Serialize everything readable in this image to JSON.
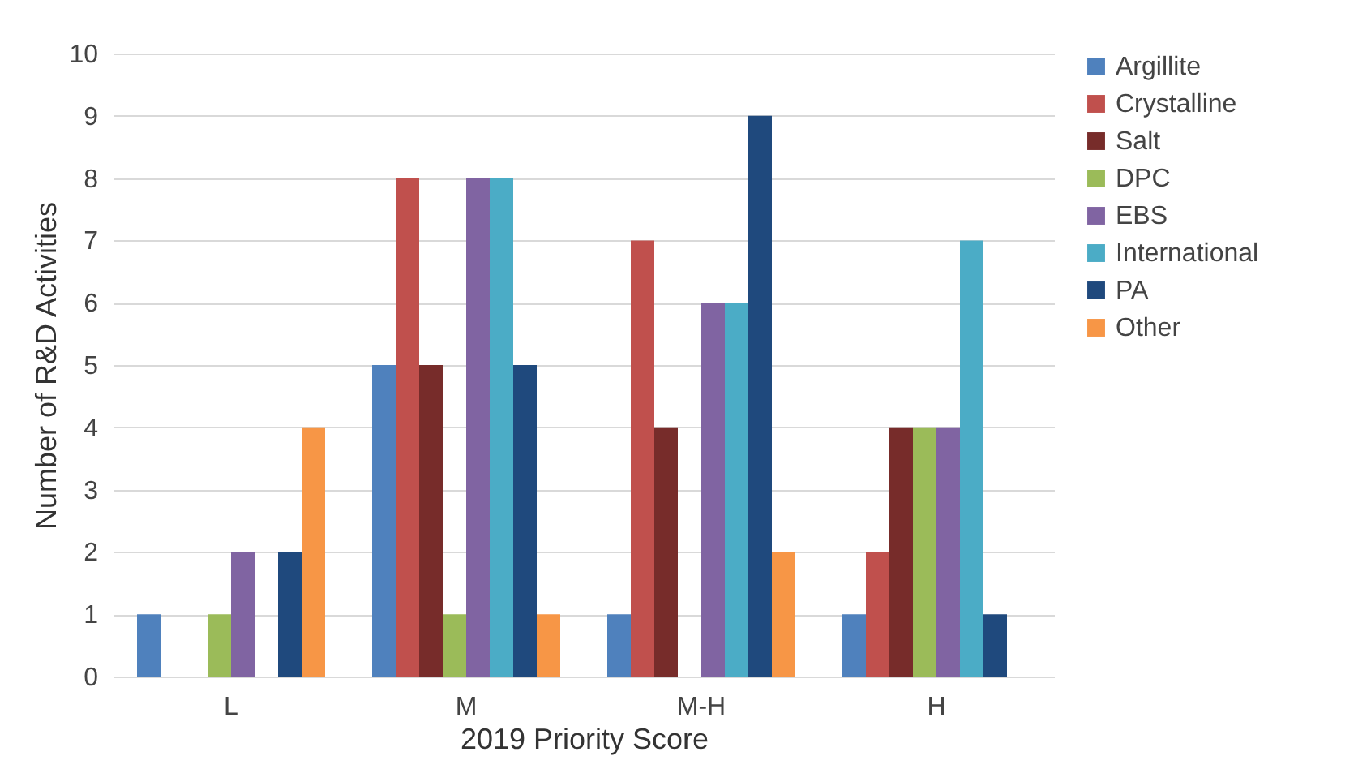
{
  "chart_data": {
    "type": "bar",
    "xlabel": "2019 Priority Score",
    "ylabel": "Number of R&D Activities",
    "categories": [
      "L",
      "M",
      "M-H",
      "H"
    ],
    "series": [
      {
        "name": "Argillite",
        "color": "#4f81bd",
        "values": [
          1,
          5,
          1,
          1
        ]
      },
      {
        "name": "Crystalline",
        "color": "#c0504d",
        "values": [
          0,
          8,
          7,
          2
        ]
      },
      {
        "name": "Salt",
        "color": "#772c2a",
        "values": [
          0,
          5,
          4,
          4
        ]
      },
      {
        "name": "DPC",
        "color": "#9bbb59",
        "values": [
          1,
          1,
          0,
          4
        ]
      },
      {
        "name": "EBS",
        "color": "#8064a2",
        "values": [
          2,
          8,
          6,
          4
        ]
      },
      {
        "name": "International",
        "color": "#4bacc6",
        "values": [
          0,
          8,
          6,
          7
        ]
      },
      {
        "name": "PA",
        "color": "#1f497d",
        "values": [
          2,
          5,
          9,
          1
        ]
      },
      {
        "name": "Other",
        "color": "#f79646",
        "values": [
          4,
          1,
          2,
          0
        ]
      }
    ],
    "ylim": [
      0,
      10
    ],
    "yticks": [
      0,
      1,
      2,
      3,
      4,
      5,
      6,
      7,
      8,
      9,
      10
    ],
    "grid": "y",
    "legend": "right"
  }
}
